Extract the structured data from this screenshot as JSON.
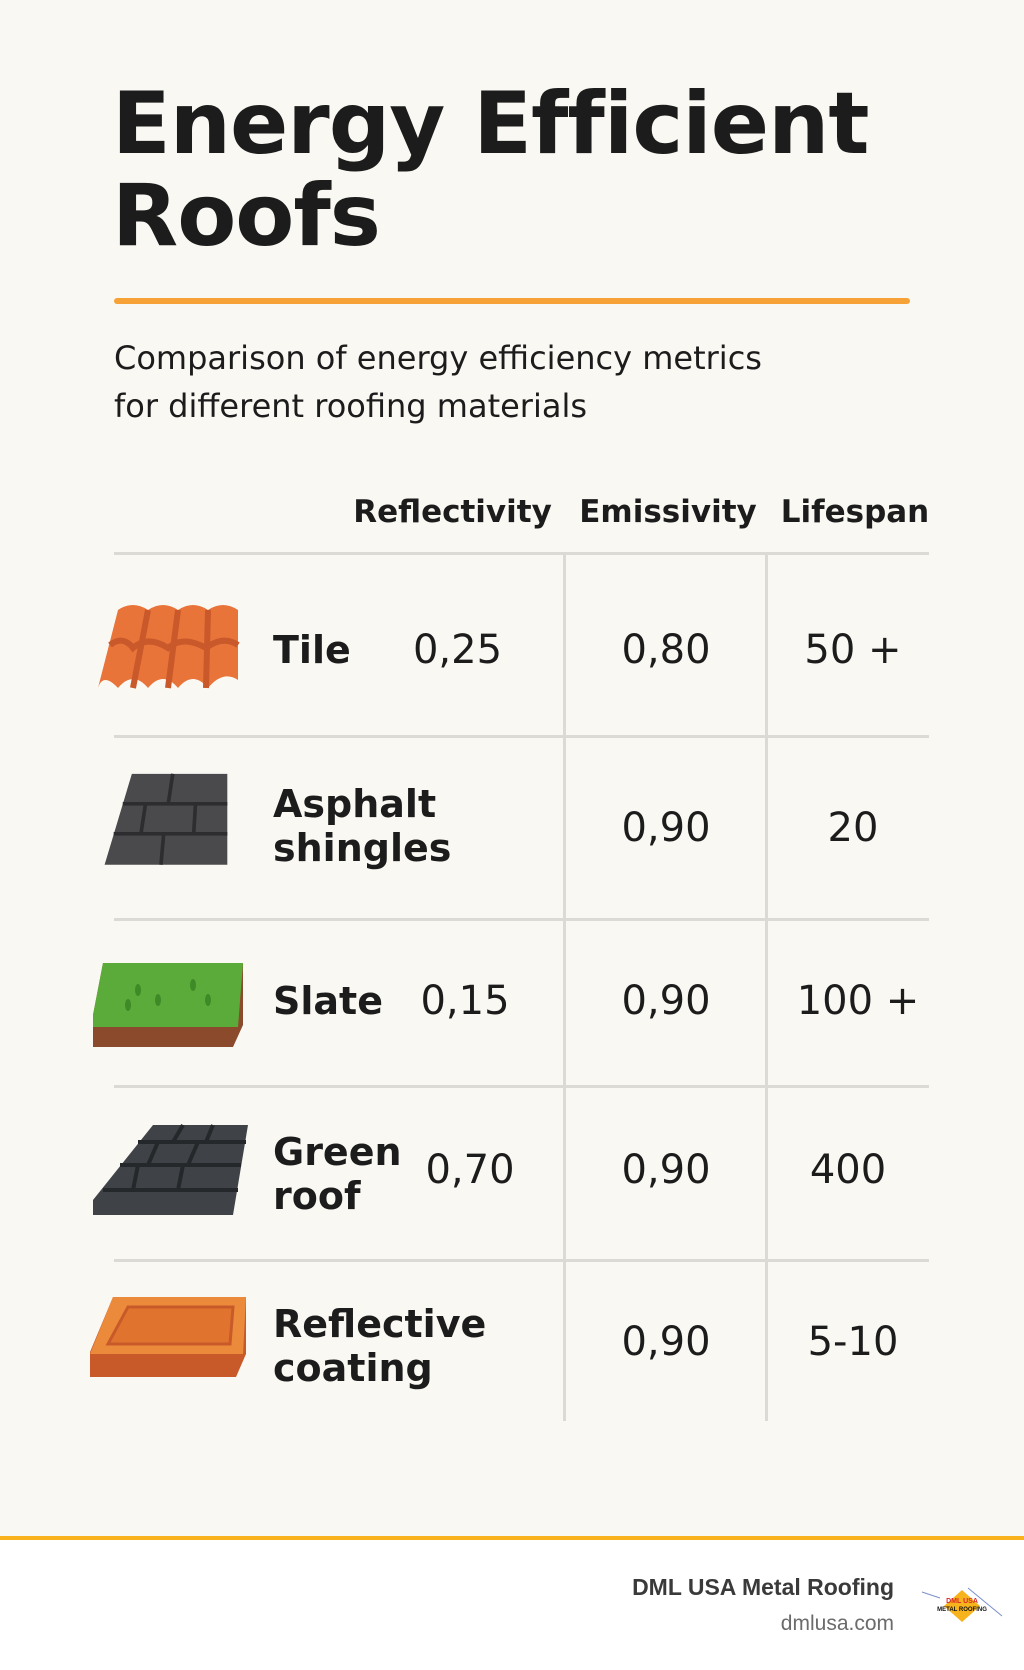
{
  "title_line1": "Energy Efficient",
  "title_line2": "Roofs",
  "subtitle_line1": "Comparison of energy efficiency metrics",
  "subtitle_line2": "for different roofing materials",
  "columns": [
    "Reflectivity",
    "Emissivity",
    "Lifespan"
  ],
  "rows": [
    {
      "name": "Tile",
      "reflectivity": "0,25",
      "emissivity": "0,80",
      "lifespan": "50 +",
      "icon": "clay-tile-icon"
    },
    {
      "name": "Asphalt shingles",
      "reflectivity": "",
      "emissivity": "0,90",
      "lifespan": "20",
      "icon": "asphalt-shingle-icon"
    },
    {
      "name": "Slate",
      "reflectivity": "0,15",
      "emissivity": "0,90",
      "lifespan": "100 +",
      "icon": "green-roof-icon"
    },
    {
      "name": "Green roof",
      "reflectivity": "0,70",
      "emissivity": "0,90",
      "lifespan": "400",
      "icon": "slate-shingle-icon"
    },
    {
      "name": "Reflective coating",
      "reflectivity": "",
      "emissivity": "0,90",
      "lifespan": "5-10",
      "icon": "coated-panel-icon"
    }
  ],
  "footer": {
    "brand": "DML USA Metal Roofing",
    "site": "dmlusa.com",
    "logo_text": "DML USA METAL ROOFING"
  },
  "colors": {
    "accent": "#f7a236",
    "background": "#faf8f3",
    "tile": "#e8743a",
    "shingle": "#4a4a4c",
    "grass": "#5aab3a"
  }
}
